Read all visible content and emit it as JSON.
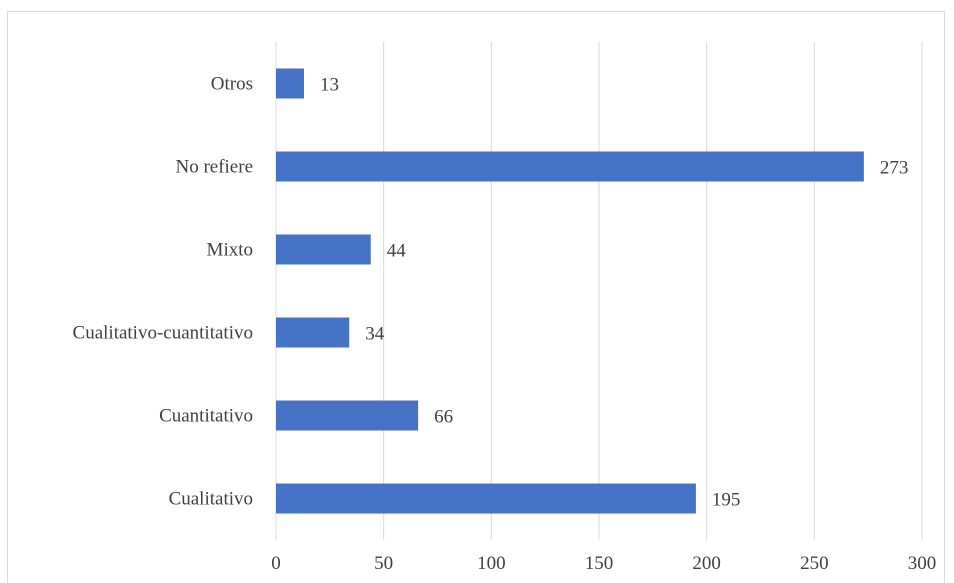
{
  "chart_data": {
    "type": "bar",
    "orientation": "horizontal",
    "categories": [
      "Otros",
      "No refiere",
      "Mixto",
      "Cualitativo-cuantitativo",
      "Cuantitativo",
      "Cualitativo"
    ],
    "values": [
      13,
      273,
      44,
      34,
      66,
      195
    ],
    "xlim": [
      0,
      300
    ],
    "xticks": [
      "0",
      "50",
      "100",
      "150",
      "200",
      "250",
      "300"
    ],
    "data_labels": [
      "13",
      "273",
      "44",
      "34",
      "66",
      "195"
    ],
    "bar_color": "#4472c4",
    "grid": "vertical",
    "legend": "none"
  }
}
